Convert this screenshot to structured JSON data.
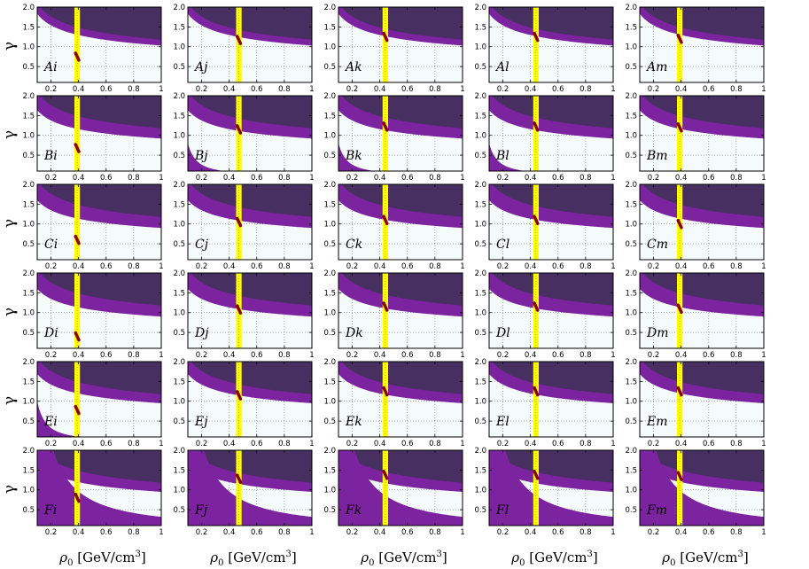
{
  "chart_data": {
    "type": "area",
    "layout": "grid of 6 rows by 5 columns",
    "xlabel": "ρ0 [GeV/cm3]",
    "xlabel_main": "ρ",
    "xlabel_sub": "0",
    "xlabel_unit": "[GeV/cm",
    "xlabel_sup": "3",
    "xlabel_close": "]",
    "ylabel": "γ",
    "xlim": [
      0.1,
      1.0
    ],
    "ylim": [
      0.1,
      2.0
    ],
    "x_ticks": [
      "0.2",
      "0.4",
      "0.6",
      "0.8",
      "1"
    ],
    "x_tick_values": [
      0.2,
      0.4,
      0.6,
      0.8,
      1.0
    ],
    "y_ticks": [
      "0.5",
      "1.0",
      "1.5",
      "2.0"
    ],
    "y_tick_values": [
      0.5,
      1.0,
      1.5,
      2.0
    ],
    "grid": true,
    "row_labels": [
      "A",
      "B",
      "C",
      "D",
      "E",
      "F"
    ],
    "col_labels": [
      "i",
      "j",
      "k",
      "l",
      "m"
    ],
    "col_bands": [
      {
        "col": "i",
        "x_range": [
          0.37,
          0.41
        ],
        "center": 0.39
      },
      {
        "col": "j",
        "x_range": [
          0.45,
          0.49
        ],
        "center": 0.47
      },
      {
        "col": "k",
        "x_range": [
          0.42,
          0.46
        ],
        "center": 0.44
      },
      {
        "col": "l",
        "x_range": [
          0.42,
          0.46
        ],
        "center": 0.44
      },
      {
        "col": "m",
        "x_range": [
          0.37,
          0.41
        ],
        "center": 0.39
      }
    ],
    "colors": {
      "dark": "#472f61",
      "purple": "#7c23a0",
      "band": "#ffff00",
      "marker": "#8b0000",
      "background": "#f5fafa"
    },
    "region_boundaries_note": "Upper dark region above gamma = a_dark / rho^p, purple region between a_purple / rho^p and a_dark / rho^p",
    "rows": [
      {
        "row": "A",
        "a_dark": 1.18,
        "a_purple": 1.03,
        "p": 0.25,
        "low_region": null,
        "markers": [
          [
            0.39,
            0.75
          ],
          [
            0.47,
            1.17
          ],
          [
            0.44,
            1.25
          ],
          [
            0.44,
            1.25
          ],
          [
            0.39,
            1.2
          ]
        ]
      },
      {
        "row": "B",
        "a_dark": 1.18,
        "a_purple": 0.92,
        "p": 0.25,
        "low_region": {
          "a": 0.02,
          "p": 1.6,
          "cols": [
            "j",
            "k",
            "l"
          ]
        },
        "markers": [
          [
            0.39,
            0.68
          ],
          [
            0.47,
            1.15
          ],
          [
            0.44,
            1.22
          ],
          [
            0.44,
            1.22
          ],
          [
            0.39,
            1.2
          ]
        ]
      },
      {
        "row": "C",
        "a_dark": 1.18,
        "a_purple": 0.9,
        "p": 0.25,
        "low_region": null,
        "markers": [
          [
            0.39,
            0.6
          ],
          [
            0.47,
            1.05
          ],
          [
            0.44,
            1.1
          ],
          [
            0.44,
            1.1
          ],
          [
            0.39,
            1.0
          ]
        ]
      },
      {
        "row": "D",
        "a_dark": 1.18,
        "a_purple": 0.9,
        "p": 0.25,
        "low_region": null,
        "markers": [
          [
            0.39,
            0.4
          ],
          [
            0.47,
            1.08
          ],
          [
            0.44,
            1.15
          ],
          [
            0.44,
            1.15
          ],
          [
            0.39,
            1.1
          ]
        ]
      },
      {
        "row": "E",
        "a_dark": 1.18,
        "a_purple": 0.95,
        "p": 0.25,
        "low_region": {
          "a": 0.025,
          "p": 1.6,
          "cols": [
            "i"
          ]
        },
        "markers": [
          [
            0.39,
            0.78
          ],
          [
            0.47,
            1.15
          ],
          [
            0.44,
            1.25
          ],
          [
            0.44,
            1.25
          ],
          [
            0.39,
            1.25
          ]
        ]
      },
      {
        "row": "F",
        "a_dark": 1.18,
        "a_purple": 0.95,
        "p": 0.25,
        "low_region": {
          "a": 0.32,
          "p": 1.2,
          "cols": [
            "i",
            "j",
            "k",
            "l",
            "m"
          ]
        },
        "markers": [
          [
            0.39,
            0.8
          ],
          [
            0.47,
            1.28
          ],
          [
            0.44,
            1.38
          ],
          [
            0.44,
            1.38
          ],
          [
            0.39,
            1.35
          ]
        ]
      }
    ]
  }
}
